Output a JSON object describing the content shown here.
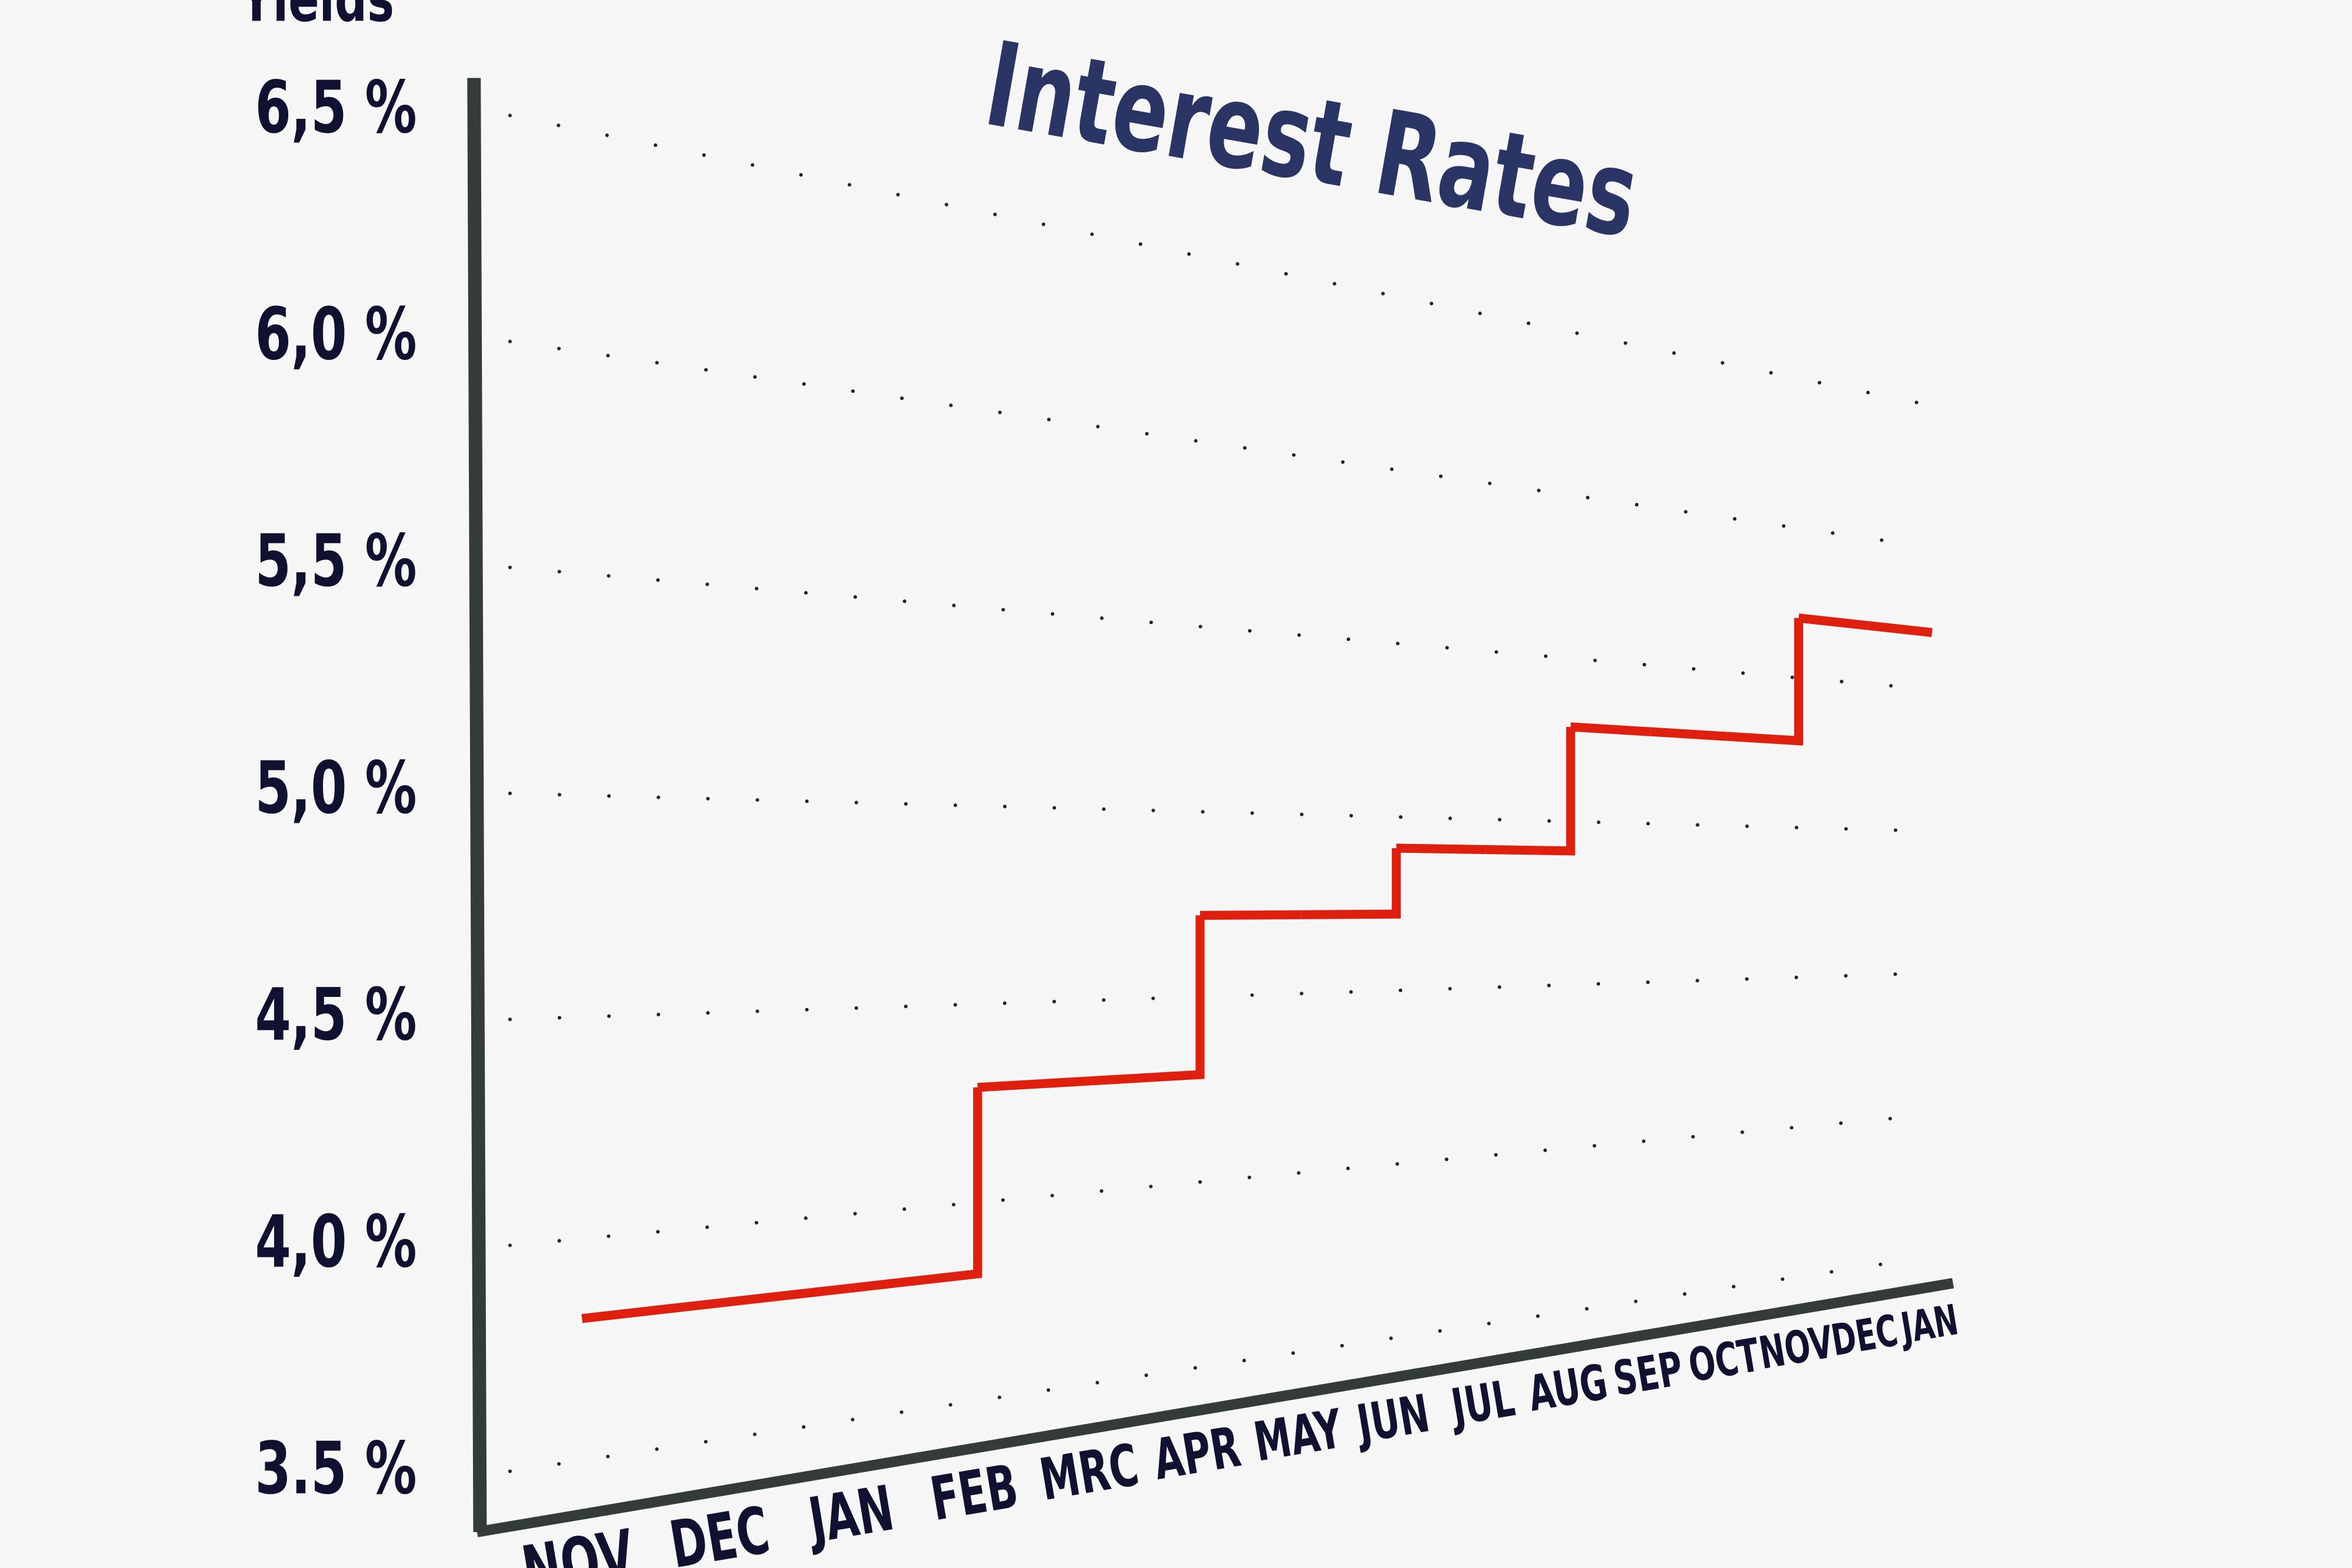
{
  "chart_data": {
    "type": "line",
    "step": "post",
    "title": "Interest Rates",
    "y_label": "Yields",
    "categories": [
      "NOV",
      "DEC",
      "JAN",
      "FEB",
      "MRC",
      "APR",
      "MAY",
      "JUN",
      "JUL",
      "AUG",
      "SEP",
      "OCT",
      "NOV",
      "DEC",
      "JAN"
    ],
    "series": [
      {
        "name": "Interest Rates",
        "color": "#e0200f",
        "values": [
          3.82,
          3.82,
          3.82,
          4.29,
          4.29,
          4.72,
          4.72,
          4.91,
          4.91,
          5.29,
          5.29,
          5.29,
          5.7,
          5.7,
          5.7
        ]
      }
    ],
    "ylim": [
      3.5,
      6.5
    ],
    "yticks": [
      {
        "value": 3.5,
        "label": "3.5 %"
      },
      {
        "value": 4.0,
        "label": "4,0 %"
      },
      {
        "value": 4.5,
        "label": "4,5 %"
      },
      {
        "value": 5.0,
        "label": "5,0 %"
      },
      {
        "value": 5.5,
        "label": "5,5 %"
      },
      {
        "value": 6.0,
        "label": "6,0 %"
      },
      {
        "value": 6.5,
        "label": "6,5 %"
      }
    ],
    "grid": true
  }
}
